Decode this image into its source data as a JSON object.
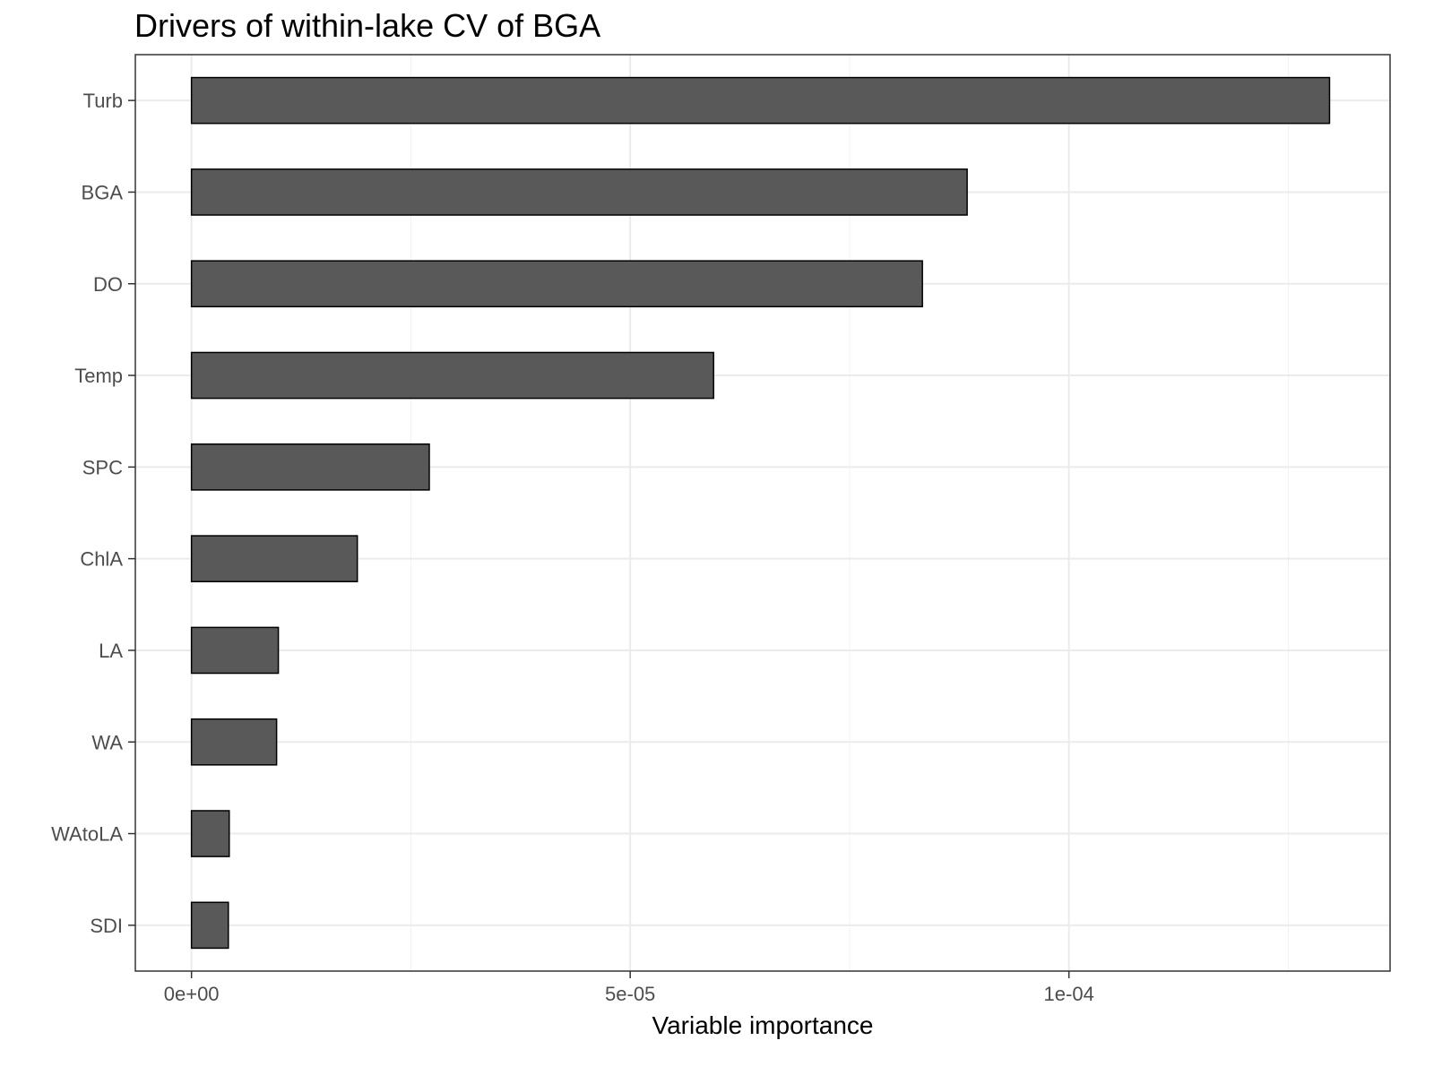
{
  "chart_data": {
    "type": "bar",
    "orientation": "horizontal",
    "title": "Drivers of within-lake CV of BGA",
    "xlabel": "Variable importance",
    "ylabel": "",
    "categories": [
      "Turb",
      "BGA",
      "DO",
      "Temp",
      "SPC",
      "ChlA",
      "LA",
      "WA",
      "WAtoLA",
      "SDI"
    ],
    "values": [
      0.0001297,
      8.84e-05,
      8.33e-05,
      5.95e-05,
      2.71e-05,
      1.89e-05,
      9.9e-06,
      9.7e-06,
      4.3e-06,
      4.2e-06
    ],
    "xlim": [
      -6.4e-06,
      0.0001366
    ],
    "x_ticks": [
      0,
      5e-05,
      0.0001
    ],
    "x_tick_labels": [
      "0e+00",
      "5e-05",
      "1e-04"
    ],
    "grid": true,
    "legend": "none",
    "colors": {
      "bar_fill": "#595959",
      "bar_stroke": "#000000",
      "grid_major": "#ebebeb",
      "grid_minor": "#f2f2f2",
      "panel_border": "#333333",
      "tick_text": "#4d4d4d"
    }
  }
}
